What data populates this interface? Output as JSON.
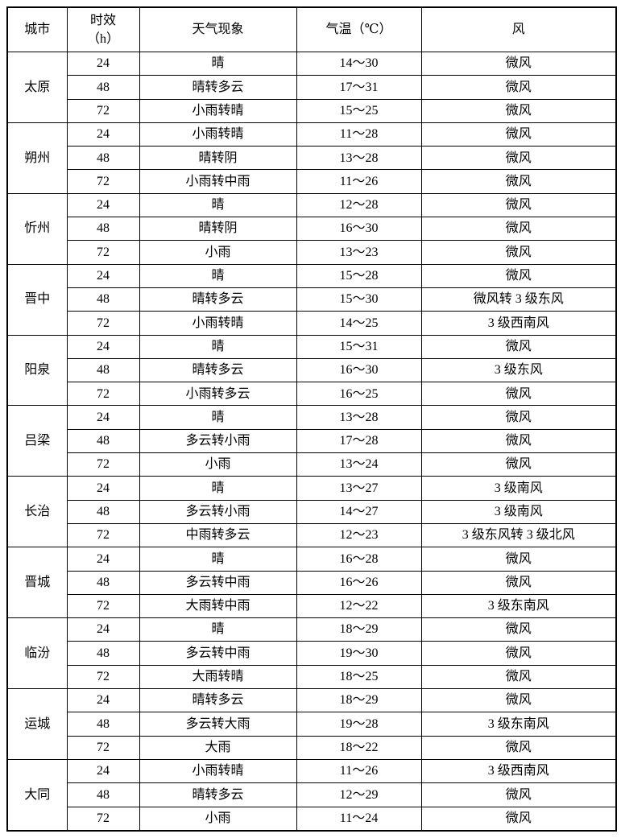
{
  "table": {
    "headers": {
      "city": "城市",
      "hours": "时效\n（h）",
      "weather": "天气现象",
      "temperature": "气温（℃）",
      "wind": "风"
    },
    "groups": [
      {
        "city": "太原",
        "rows": [
          {
            "hours": "24",
            "weather": "晴",
            "temp": "14～30",
            "wind": "微风"
          },
          {
            "hours": "48",
            "weather": "晴转多云",
            "temp": "17～31",
            "wind": "微风"
          },
          {
            "hours": "72",
            "weather": "小雨转晴",
            "temp": "15～25",
            "wind": "微风"
          }
        ]
      },
      {
        "city": "朔州",
        "rows": [
          {
            "hours": "24",
            "weather": "小雨转晴",
            "temp": "11～28",
            "wind": "微风"
          },
          {
            "hours": "48",
            "weather": "晴转阴",
            "temp": "13～28",
            "wind": "微风"
          },
          {
            "hours": "72",
            "weather": "小雨转中雨",
            "temp": "11～26",
            "wind": "微风"
          }
        ]
      },
      {
        "city": "忻州",
        "rows": [
          {
            "hours": "24",
            "weather": "晴",
            "temp": "12～28",
            "wind": "微风"
          },
          {
            "hours": "48",
            "weather": "晴转阴",
            "temp": "16～30",
            "wind": "微风"
          },
          {
            "hours": "72",
            "weather": "小雨",
            "temp": "13～23",
            "wind": "微风"
          }
        ]
      },
      {
        "city": "晋中",
        "rows": [
          {
            "hours": "24",
            "weather": "晴",
            "temp": "15～28",
            "wind": "微风"
          },
          {
            "hours": "48",
            "weather": "晴转多云",
            "temp": "15～30",
            "wind": "微风转 3 级东风"
          },
          {
            "hours": "72",
            "weather": "小雨转晴",
            "temp": "14～25",
            "wind": "3 级西南风"
          }
        ]
      },
      {
        "city": "阳泉",
        "rows": [
          {
            "hours": "24",
            "weather": "晴",
            "temp": "15～31",
            "wind": "微风"
          },
          {
            "hours": "48",
            "weather": "晴转多云",
            "temp": "16～30",
            "wind": "3 级东风"
          },
          {
            "hours": "72",
            "weather": "小雨转多云",
            "temp": "16～25",
            "wind": "微风"
          }
        ]
      },
      {
        "city": "吕梁",
        "rows": [
          {
            "hours": "24",
            "weather": "晴",
            "temp": "13～28",
            "wind": "微风"
          },
          {
            "hours": "48",
            "weather": "多云转小雨",
            "temp": "17～28",
            "wind": "微风"
          },
          {
            "hours": "72",
            "weather": "小雨",
            "temp": "13～24",
            "wind": "微风"
          }
        ]
      },
      {
        "city": "长治",
        "rows": [
          {
            "hours": "24",
            "weather": "晴",
            "temp": "13～27",
            "wind": "3 级南风"
          },
          {
            "hours": "48",
            "weather": "多云转小雨",
            "temp": "14～27",
            "wind": "3 级南风"
          },
          {
            "hours": "72",
            "weather": "中雨转多云",
            "temp": "12～23",
            "wind": "3 级东风转 3 级北风"
          }
        ]
      },
      {
        "city": "晋城",
        "rows": [
          {
            "hours": "24",
            "weather": "晴",
            "temp": "16～28",
            "wind": "微风"
          },
          {
            "hours": "48",
            "weather": "多云转中雨",
            "temp": "16～26",
            "wind": "微风"
          },
          {
            "hours": "72",
            "weather": "大雨转中雨",
            "temp": "12～22",
            "wind": "3 级东南风"
          }
        ]
      },
      {
        "city": "临汾",
        "rows": [
          {
            "hours": "24",
            "weather": "晴",
            "temp": "18～29",
            "wind": "微风"
          },
          {
            "hours": "48",
            "weather": "多云转中雨",
            "temp": "19～30",
            "wind": "微风"
          },
          {
            "hours": "72",
            "weather": "大雨转晴",
            "temp": "18～25",
            "wind": "微风"
          }
        ]
      },
      {
        "city": "运城",
        "rows": [
          {
            "hours": "24",
            "weather": "晴转多云",
            "temp": "18～29",
            "wind": "微风"
          },
          {
            "hours": "48",
            "weather": "多云转大雨",
            "temp": "19～28",
            "wind": "3 级东南风"
          },
          {
            "hours": "72",
            "weather": "大雨",
            "temp": "18～22",
            "wind": "微风"
          }
        ]
      },
      {
        "city": "大同",
        "rows": [
          {
            "hours": "24",
            "weather": "小雨转晴",
            "temp": "11～26",
            "wind": "3 级西南风"
          },
          {
            "hours": "48",
            "weather": "晴转多云",
            "temp": "12～29",
            "wind": "微风"
          },
          {
            "hours": "72",
            "weather": "小雨",
            "temp": "11～24",
            "wind": "微风"
          }
        ]
      }
    ]
  }
}
